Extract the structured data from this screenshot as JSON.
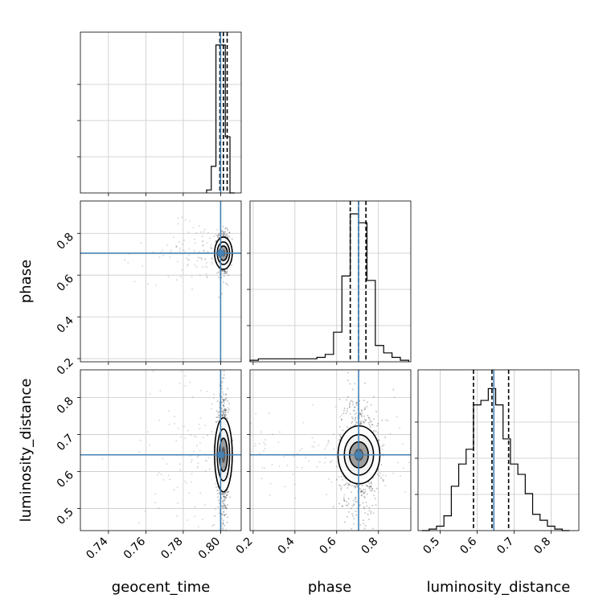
{
  "chart_data": {
    "type": "corner",
    "parameters": [
      {
        "label": "geocent_time",
        "range": [
          0.725,
          0.811
        ],
        "ticks": [
          0.74,
          0.76,
          0.78,
          0.8
        ],
        "tick_labels": [
          "0.74",
          "0.76",
          "0.78",
          "0.80"
        ],
        "truth": 0.8,
        "quantiles": [
          0.7996,
          0.8015,
          0.8035
        ]
      },
      {
        "label": "phase",
        "range": [
          0.185,
          0.955
        ],
        "ticks": [
          0.2,
          0.4,
          0.6,
          0.8
        ],
        "tick_labels": [
          "0.2",
          "0.4",
          "0.6",
          "0.8"
        ],
        "truth": 0.705,
        "quantiles": [
          0.665,
          0.705,
          0.74
        ]
      },
      {
        "label": "luminosity_distance",
        "range": [
          0.44,
          0.875
        ],
        "ticks": [
          0.5,
          0.6,
          0.7,
          0.8
        ],
        "tick_labels": [
          "0.5",
          "0.6",
          "0.7",
          "0.8"
        ],
        "truth": 0.645,
        "quantiles": [
          0.59,
          0.64,
          0.685
        ]
      }
    ],
    "histograms": [
      {
        "parameter": "geocent_time",
        "bins": [
          0.7925,
          0.795,
          0.7975,
          0.8,
          0.8025,
          0.805,
          0.8075
        ],
        "density": [
          0.02,
          0.18,
          1.0,
          1.0,
          0.38,
          0.0
        ]
      },
      {
        "parameter": "phase",
        "bins": [
          0.185,
          0.225,
          0.265,
          0.305,
          0.345,
          0.385,
          0.425,
          0.465,
          0.505,
          0.545,
          0.585,
          0.625,
          0.665,
          0.705,
          0.745,
          0.785,
          0.825,
          0.865,
          0.905,
          0.945
        ],
        "density": [
          0.01,
          0.02,
          0.02,
          0.02,
          0.02,
          0.02,
          0.02,
          0.02,
          0.03,
          0.05,
          0.2,
          0.58,
          1.0,
          0.94,
          0.55,
          0.11,
          0.06,
          0.03,
          0.01
        ]
      },
      {
        "parameter": "luminosity_distance",
        "bins": [
          0.45,
          0.47,
          0.49,
          0.51,
          0.53,
          0.55,
          0.57,
          0.59,
          0.61,
          0.63,
          0.65,
          0.67,
          0.69,
          0.71,
          0.73,
          0.75,
          0.77,
          0.79,
          0.81,
          0.83,
          0.85
        ],
        "density": [
          0.0,
          0.01,
          0.03,
          0.1,
          0.3,
          0.45,
          0.55,
          0.85,
          0.88,
          0.96,
          0.85,
          0.62,
          0.45,
          0.38,
          0.25,
          0.11,
          0.07,
          0.03,
          0.01,
          0.0
        ]
      }
    ],
    "truth_color": "#4682b4",
    "contour_color": "#000000",
    "scatter_color": "#000000",
    "grid": true
  }
}
